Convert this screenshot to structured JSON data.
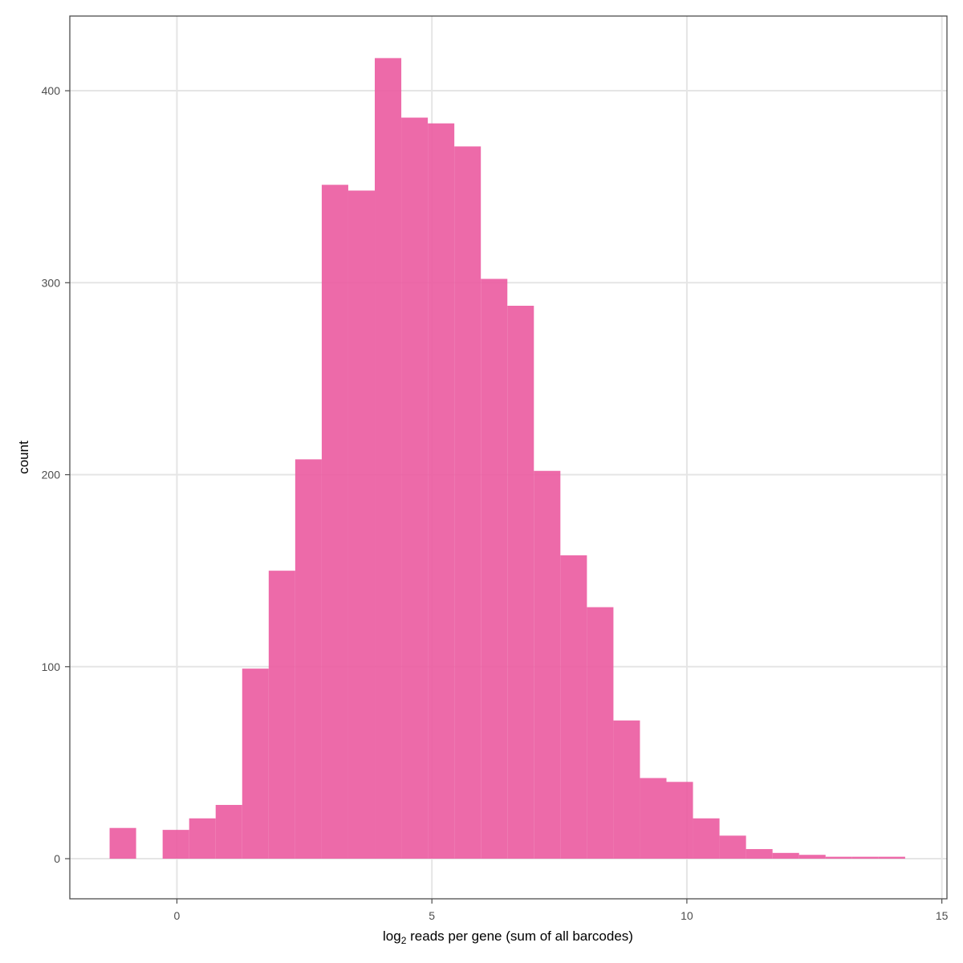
{
  "chart_data": {
    "type": "histogram",
    "xlabel": "log",
    "xlabel_subscript": "2",
    "xlabel_rest": " reads per gene (sum of all barcodes)",
    "ylabel": "count",
    "xlim": [
      -2.1,
      15.1
    ],
    "ylim": [
      -20.9,
      438.9
    ],
    "x_ticks": [
      0,
      5,
      10,
      15
    ],
    "x_tick_labels": [
      "0",
      "5",
      "10",
      "15"
    ],
    "y_ticks": [
      0,
      100,
      200,
      300,
      400
    ],
    "y_tick_labels": [
      "0",
      "100",
      "200",
      "300",
      "400"
    ],
    "grid": true,
    "bar_color": "#EB5AA0",
    "bar_opacity": 0.9,
    "bins": [
      {
        "x0": -1.32,
        "x1": -0.8,
        "count": 16
      },
      {
        "x0": -0.28,
        "x1": 0.24,
        "count": 15
      },
      {
        "x0": 0.24,
        "x1": 0.76,
        "count": 21
      },
      {
        "x0": 0.76,
        "x1": 1.28,
        "count": 28
      },
      {
        "x0": 1.28,
        "x1": 1.8,
        "count": 99
      },
      {
        "x0": 1.8,
        "x1": 2.32,
        "count": 150
      },
      {
        "x0": 2.32,
        "x1": 2.84,
        "count": 208
      },
      {
        "x0": 2.84,
        "x1": 3.36,
        "count": 351
      },
      {
        "x0": 3.36,
        "x1": 3.88,
        "count": 348
      },
      {
        "x0": 3.88,
        "x1": 4.4,
        "count": 417
      },
      {
        "x0": 4.4,
        "x1": 4.92,
        "count": 386
      },
      {
        "x0": 4.92,
        "x1": 5.44,
        "count": 383
      },
      {
        "x0": 5.44,
        "x1": 5.96,
        "count": 371
      },
      {
        "x0": 5.96,
        "x1": 6.48,
        "count": 302
      },
      {
        "x0": 6.48,
        "x1": 7.0,
        "count": 288
      },
      {
        "x0": 7.0,
        "x1": 7.52,
        "count": 202
      },
      {
        "x0": 7.52,
        "x1": 8.04,
        "count": 158
      },
      {
        "x0": 8.04,
        "x1": 8.56,
        "count": 131
      },
      {
        "x0": 8.56,
        "x1": 9.08,
        "count": 72
      },
      {
        "x0": 9.08,
        "x1": 9.6,
        "count": 42
      },
      {
        "x0": 9.6,
        "x1": 10.12,
        "count": 40
      },
      {
        "x0": 10.12,
        "x1": 10.64,
        "count": 21
      },
      {
        "x0": 10.64,
        "x1": 11.16,
        "count": 12
      },
      {
        "x0": 11.16,
        "x1": 11.68,
        "count": 5
      },
      {
        "x0": 11.68,
        "x1": 12.2,
        "count": 3
      },
      {
        "x0": 12.2,
        "x1": 12.72,
        "count": 2
      },
      {
        "x0": 12.72,
        "x1": 13.24,
        "count": 1
      },
      {
        "x0": 13.24,
        "x1": 13.76,
        "count": 1
      },
      {
        "x0": 13.76,
        "x1": 14.28,
        "count": 1
      }
    ]
  }
}
